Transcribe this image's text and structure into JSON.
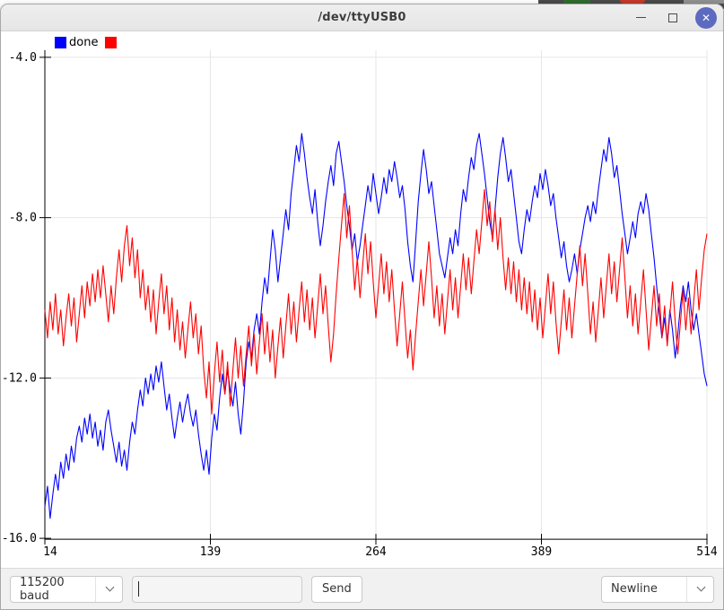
{
  "window": {
    "title": "/dev/ttyUSB0"
  },
  "chart_data": {
    "type": "line",
    "title": "",
    "xlabel": "",
    "ylabel": "",
    "xlim": [
      14,
      514
    ],
    "ylim": [
      -16.0,
      -4.0
    ],
    "grid": true,
    "legend_position": "top-left",
    "x_ticks": [
      14,
      139,
      264,
      389,
      514
    ],
    "x_tick_labels": [
      "14",
      "139",
      "264",
      "389",
      "514"
    ],
    "y_ticks": [
      -4.0,
      -8.0,
      -12.0,
      -16.0
    ],
    "y_tick_labels": [
      "-4.0",
      "-8.0",
      "-12.0",
      "-16.0"
    ],
    "x_start": 14,
    "x_step": 2,
    "series": [
      {
        "name": "done",
        "color": "#0000ff",
        "values": [
          -15.2,
          -14.7,
          -15.5,
          -14.9,
          -14.4,
          -14.8,
          -14.1,
          -14.5,
          -13.9,
          -14.3,
          -13.7,
          -14.1,
          -13.5,
          -13.2,
          -13.6,
          -13.0,
          -13.4,
          -12.9,
          -13.5,
          -13.1,
          -13.7,
          -13.3,
          -13.8,
          -13.1,
          -12.8,
          -13.3,
          -13.7,
          -14.1,
          -13.6,
          -14.2,
          -13.8,
          -14.3,
          -13.6,
          -13.1,
          -13.4,
          -12.8,
          -12.3,
          -12.7,
          -12.0,
          -12.4,
          -11.9,
          -12.3,
          -11.7,
          -12.1,
          -11.6,
          -12.2,
          -12.8,
          -12.4,
          -13.0,
          -13.5,
          -13.0,
          -12.6,
          -13.1,
          -12.7,
          -12.4,
          -12.9,
          -13.2,
          -12.8,
          -13.4,
          -13.9,
          -14.3,
          -13.8,
          -14.4,
          -13.5,
          -12.9,
          -13.3,
          -12.5,
          -11.9,
          -12.4,
          -11.8,
          -12.3,
          -12.7,
          -12.1,
          -12.9,
          -13.4,
          -12.6,
          -11.6,
          -11.1,
          -11.5,
          -10.8,
          -10.4,
          -10.9,
          -10.1,
          -9.5,
          -9.9,
          -9.1,
          -8.3,
          -8.8,
          -9.6,
          -9.0,
          -8.4,
          -7.8,
          -8.3,
          -7.4,
          -6.8,
          -6.2,
          -6.6,
          -5.9,
          -6.4,
          -7.0,
          -7.5,
          -7.9,
          -7.3,
          -8.1,
          -8.7,
          -8.2,
          -7.6,
          -7.1,
          -6.7,
          -7.2,
          -6.4,
          -6.1,
          -6.6,
          -7.1,
          -7.7,
          -8.2,
          -8.8,
          -8.4,
          -9.1,
          -8.7,
          -8.2,
          -7.7,
          -7.2,
          -7.6,
          -6.9,
          -7.4,
          -7.9,
          -7.5,
          -7.0,
          -7.4,
          -6.8,
          -7.1,
          -6.6,
          -7.0,
          -7.5,
          -7.2,
          -7.8,
          -8.6,
          -9.2,
          -9.6,
          -8.6,
          -7.6,
          -6.9,
          -6.3,
          -6.8,
          -7.4,
          -7.1,
          -7.7,
          -8.3,
          -8.9,
          -9.2,
          -9.5,
          -9.0,
          -8.5,
          -8.9,
          -8.3,
          -8.7,
          -7.9,
          -7.3,
          -7.6,
          -7.0,
          -6.5,
          -6.8,
          -6.2,
          -5.9,
          -6.4,
          -6.9,
          -7.5,
          -8.1,
          -8.5,
          -7.8,
          -7.0,
          -6.4,
          -6.0,
          -6.5,
          -7.1,
          -6.8,
          -7.4,
          -8.0,
          -8.6,
          -8.9,
          -8.3,
          -7.8,
          -8.1,
          -7.6,
          -7.2,
          -7.5,
          -6.9,
          -7.3,
          -6.8,
          -7.2,
          -7.7,
          -7.4,
          -8.0,
          -8.5,
          -9.0,
          -8.6,
          -9.2,
          -9.6,
          -9.3,
          -8.9,
          -9.4,
          -8.8,
          -8.4,
          -8.0,
          -7.7,
          -8.1,
          -7.6,
          -7.9,
          -7.3,
          -6.8,
          -6.3,
          -6.6,
          -6.0,
          -6.4,
          -7.0,
          -6.7,
          -7.3,
          -7.9,
          -8.4,
          -8.9,
          -8.5,
          -8.1,
          -8.5,
          -7.9,
          -7.6,
          -7.9,
          -7.4,
          -7.8,
          -8.4,
          -9.0,
          -9.7,
          -10.4,
          -11.0,
          -10.5,
          -11.1,
          -10.3,
          -10.8,
          -11.5,
          -10.9,
          -10.2,
          -9.7,
          -10.1,
          -9.6,
          -10.3,
          -10.8,
          -10.4,
          -10.9,
          -11.4,
          -11.9,
          -12.2
        ]
      },
      {
        "name": "",
        "color": "#ff0000",
        "values": [
          -10.3,
          -11.0,
          -10.1,
          -10.8,
          -9.9,
          -10.9,
          -10.3,
          -11.2,
          -10.5,
          -9.9,
          -10.7,
          -10.0,
          -11.1,
          -10.4,
          -9.7,
          -10.5,
          -9.6,
          -10.2,
          -9.4,
          -10.1,
          -9.3,
          -10.0,
          -9.2,
          -9.9,
          -10.6,
          -9.7,
          -10.4,
          -9.5,
          -8.8,
          -9.6,
          -8.7,
          -8.2,
          -9.2,
          -8.5,
          -9.5,
          -8.8,
          -10.0,
          -9.3,
          -10.3,
          -9.7,
          -10.6,
          -9.8,
          -10.9,
          -10.1,
          -9.4,
          -10.4,
          -9.7,
          -10.8,
          -10.0,
          -11.1,
          -10.3,
          -11.3,
          -10.6,
          -11.5,
          -10.8,
          -10.1,
          -11.0,
          -10.4,
          -11.4,
          -10.7,
          -11.8,
          -12.5,
          -11.6,
          -12.9,
          -11.9,
          -11.1,
          -12.1,
          -11.3,
          -12.4,
          -11.6,
          -12.7,
          -11.8,
          -11.0,
          -12.0,
          -11.2,
          -12.2,
          -11.4,
          -10.7,
          -11.7,
          -10.9,
          -11.9,
          -11.1,
          -10.4,
          -11.4,
          -10.6,
          -11.6,
          -10.8,
          -12.0,
          -11.2,
          -10.5,
          -11.5,
          -10.7,
          -9.9,
          -10.9,
          -10.1,
          -11.1,
          -10.3,
          -9.6,
          -10.6,
          -9.8,
          -10.8,
          -10.0,
          -11.0,
          -10.2,
          -9.4,
          -10.4,
          -9.7,
          -10.7,
          -11.6,
          -10.9,
          -9.9,
          -9.0,
          -8.2,
          -7.4,
          -8.5,
          -7.7,
          -8.8,
          -9.8,
          -9.0,
          -10.0,
          -9.2,
          -8.4,
          -9.4,
          -8.6,
          -9.6,
          -10.5,
          -9.7,
          -8.9,
          -9.9,
          -9.1,
          -10.1,
          -9.3,
          -10.3,
          -11.2,
          -10.4,
          -9.6,
          -10.6,
          -11.5,
          -10.8,
          -11.8,
          -10.9,
          -10.1,
          -9.3,
          -10.2,
          -9.4,
          -8.6,
          -9.5,
          -10.5,
          -9.7,
          -10.7,
          -9.9,
          -10.9,
          -10.1,
          -9.3,
          -10.3,
          -9.5,
          -10.5,
          -9.7,
          -8.9,
          -9.8,
          -9.0,
          -9.9,
          -9.1,
          -8.3,
          -8.9,
          -8.1,
          -7.3,
          -8.2,
          -7.6,
          -8.6,
          -7.8,
          -8.8,
          -8.0,
          -9.0,
          -9.8,
          -9.0,
          -9.9,
          -9.1,
          -10.1,
          -9.3,
          -10.3,
          -9.5,
          -10.4,
          -9.6,
          -10.6,
          -9.8,
          -10.8,
          -10.0,
          -11.0,
          -10.2,
          -9.4,
          -10.4,
          -9.6,
          -10.6,
          -11.4,
          -10.6,
          -9.8,
          -10.8,
          -10.0,
          -11.0,
          -10.2,
          -9.4,
          -8.7,
          -9.7,
          -8.9,
          -9.9,
          -10.9,
          -10.1,
          -11.1,
          -10.3,
          -9.5,
          -10.5,
          -9.7,
          -8.9,
          -9.9,
          -9.1,
          -10.1,
          -9.3,
          -8.5,
          -9.5,
          -10.5,
          -9.7,
          -10.7,
          -9.9,
          -10.9,
          -10.1,
          -9.3,
          -10.3,
          -11.3,
          -10.5,
          -9.7,
          -10.7,
          -9.9,
          -11.0,
          -10.2,
          -11.2,
          -10.4,
          -9.6,
          -10.6,
          -11.4,
          -10.6,
          -9.8,
          -10.8,
          -10.0,
          -10.9,
          -10.1,
          -9.3,
          -10.3,
          -9.5,
          -8.8,
          -8.4
        ]
      }
    ]
  },
  "toolbar": {
    "baud_select": {
      "value": "115200 baud"
    },
    "message_input": {
      "value": "",
      "placeholder": ""
    },
    "send_button": "Send",
    "line_ending_select": {
      "value": "Newline"
    }
  }
}
